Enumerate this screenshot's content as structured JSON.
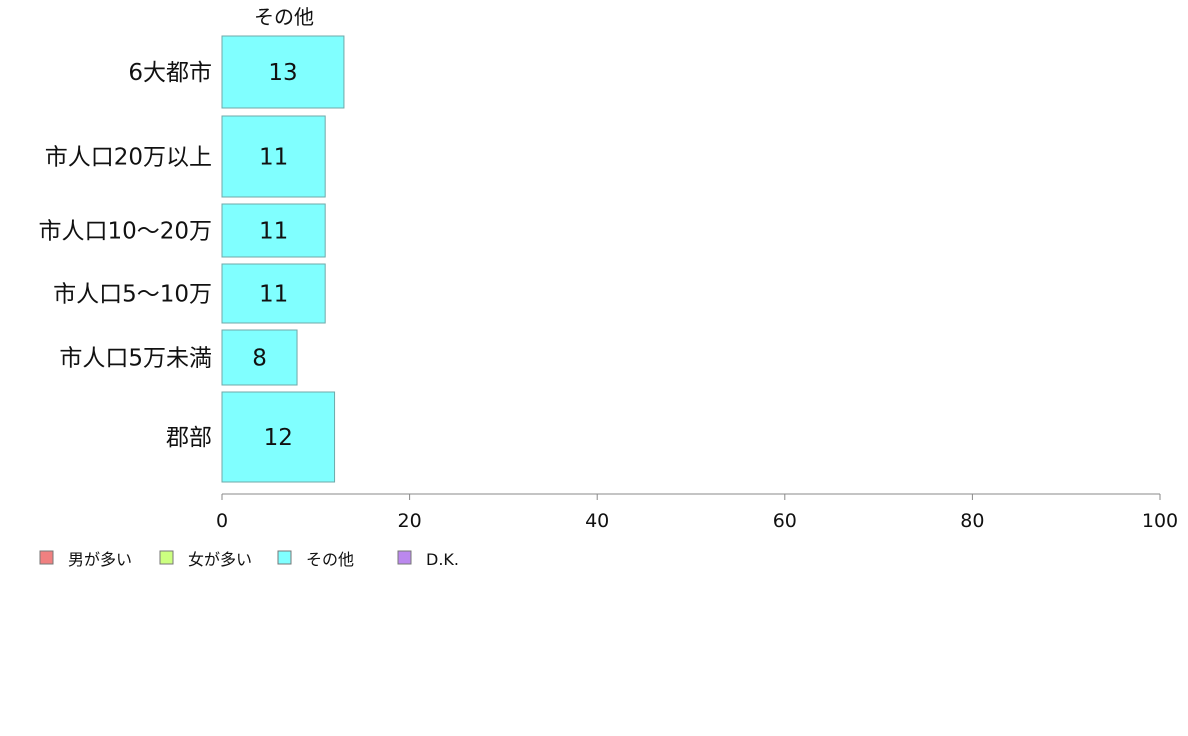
{
  "chart_data": {
    "type": "bar",
    "orientation": "horizontal",
    "stacked": true,
    "categories": [
      "6大都市",
      "市人口20万以上",
      "市人口10〜20万",
      "市人口5〜10万",
      "市人口5万未満",
      "郡部"
    ],
    "series": [
      {
        "name": "男が多い",
        "color": "#f08080",
        "values": [
          0,
          0,
          0,
          0,
          0,
          0
        ]
      },
      {
        "name": "女が多い",
        "color": "#ccff80",
        "values": [
          0,
          0,
          0,
          0,
          0,
          0
        ]
      },
      {
        "name": "その他",
        "color": "#80ffff",
        "values": [
          13,
          11,
          11,
          11,
          8,
          12
        ]
      },
      {
        "name": "D.K.",
        "color": "#bb88ee",
        "values": [
          0,
          0,
          0,
          0,
          0,
          0
        ]
      }
    ],
    "top_series_label": "その他",
    "xlim": [
      0,
      100
    ],
    "xticks": [
      "0",
      "20",
      "40",
      "60",
      "80",
      "100"
    ],
    "legend_position": "bottom-left",
    "grid": false
  }
}
